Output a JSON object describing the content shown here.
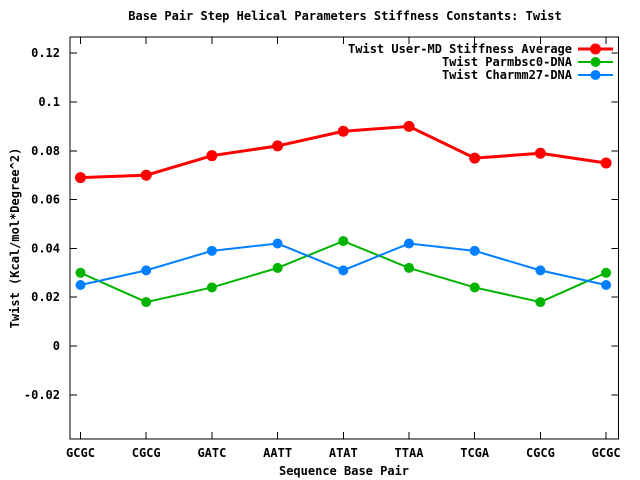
{
  "chart": {
    "title": "Base Pair Step Helical Parameters Stiffness Constants: Twist",
    "xlabel": "Sequence Base Pair",
    "ylabel": "Twist (Kcal/mol*Degree^2)"
  },
  "chart_data": {
    "type": "line",
    "title": "Base Pair Step Helical Parameters Stiffness Constants: Twist",
    "xlabel": "Sequence Base Pair",
    "ylabel": "Twist (Kcal/mol*Degree^2)",
    "categories": [
      "GCGC",
      "CGCG",
      "GATC",
      "AATT",
      "ATAT",
      "TTAA",
      "TCGA",
      "CGCG",
      "GCGC"
    ],
    "series": [
      {
        "name": "Twist User-MD Stiffness Average",
        "color": "#ff0000",
        "marker": "filled-circle",
        "values": [
          0.069,
          0.07,
          0.078,
          0.082,
          0.088,
          0.09,
          0.077,
          0.079,
          0.075
        ]
      },
      {
        "name": "Twist Parmbsc0-DNA",
        "color": "#00b400",
        "marker": "filled-circle",
        "values": [
          0.03,
          0.018,
          0.024,
          0.032,
          0.043,
          0.032,
          0.024,
          0.018,
          0.03
        ]
      },
      {
        "name": "Twist Charmm27-DNA",
        "color": "#0080ff",
        "marker": "filled-circle",
        "values": [
          0.025,
          0.031,
          0.039,
          0.042,
          0.031,
          0.042,
          0.039,
          0.031,
          0.025
        ]
      }
    ],
    "yticks": [
      {
        "value": 0.12,
        "label": "0.12"
      },
      {
        "value": 0.1,
        "label": "0.1"
      },
      {
        "value": 0.08,
        "label": "0.08"
      },
      {
        "value": 0.06,
        "label": "0.06"
      },
      {
        "value": 0.04,
        "label": "0.04"
      },
      {
        "value": 0.02,
        "label": "0.02"
      },
      {
        "value": 0.0,
        "label": "0"
      },
      {
        "value": -0.02,
        "label": "-0.02"
      }
    ],
    "ylim": [
      -0.038,
      0.127
    ],
    "grid": false,
    "legend_position": "top-right-inside",
    "background": "#ffffff",
    "axis_color": "#000000"
  }
}
